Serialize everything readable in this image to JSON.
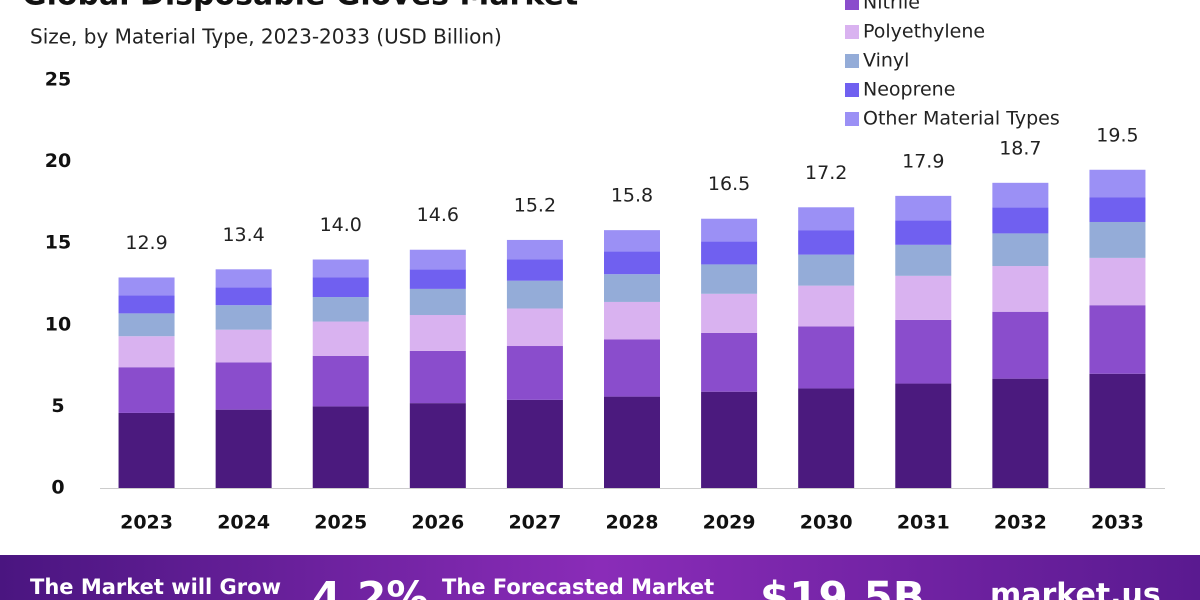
{
  "chart_data": {
    "type": "stacked_bar",
    "title": "Global Disposable Gloves Market",
    "subtitle": "Size, by Material Type, 2023-2033 (USD Billion)",
    "categories": [
      "2023",
      "2024",
      "2025",
      "2026",
      "2027",
      "2028",
      "2029",
      "2030",
      "2031",
      "2032",
      "2033"
    ],
    "series": [
      {
        "color": "#4b1a7e",
        "values": [
          4.6,
          4.8,
          5.0,
          5.2,
          5.4,
          5.6,
          5.9,
          6.1,
          6.4,
          6.7,
          7.0
        ]
      },
      {
        "name": "Nitrile",
        "color": "#8a4dcc",
        "values": [
          2.8,
          2.9,
          3.1,
          3.2,
          3.3,
          3.5,
          3.6,
          3.8,
          3.9,
          4.1,
          4.2
        ]
      },
      {
        "name": "Polyethylene",
        "color": "#d9b2f0",
        "values": [
          1.9,
          2.0,
          2.1,
          2.2,
          2.3,
          2.3,
          2.4,
          2.5,
          2.7,
          2.8,
          2.9
        ]
      },
      {
        "name": "Vinyl",
        "color": "#94acd8",
        "values": [
          1.4,
          1.5,
          1.5,
          1.6,
          1.7,
          1.7,
          1.8,
          1.9,
          1.9,
          2.0,
          2.2
        ]
      },
      {
        "name": "Neoprene",
        "color": "#7060f0",
        "values": [
          1.1,
          1.1,
          1.2,
          1.2,
          1.3,
          1.4,
          1.4,
          1.5,
          1.5,
          1.6,
          1.5
        ]
      },
      {
        "name": "Other Material Types",
        "color": "#9b90f5",
        "values": [
          1.1,
          1.1,
          1.1,
          1.2,
          1.2,
          1.3,
          1.4,
          1.4,
          1.5,
          1.5,
          1.7
        ]
      }
    ],
    "totals": {
      "values": [
        12.9,
        13.4,
        14,
        14.6,
        15.2,
        15.8,
        16.5,
        17.2,
        17.9,
        18.7,
        19.5
      ],
      "value_labels": [
        "12.9",
        "13.4",
        "14.0",
        "14.6",
        "15.2",
        "15.8",
        "16.5",
        "17.2",
        "17.9",
        "18.7",
        "19.5"
      ]
    },
    "ylim": [
      0,
      25
    ],
    "yticks": [
      0,
      5,
      10,
      15,
      20,
      25
    ],
    "grid": false
  },
  "banner": {
    "grow_text": "The Market will Grow",
    "cagr": "4.2%",
    "forecast_text": "The Forecasted Market",
    "forecast_value": "$19.5B",
    "brand": "market.us"
  }
}
